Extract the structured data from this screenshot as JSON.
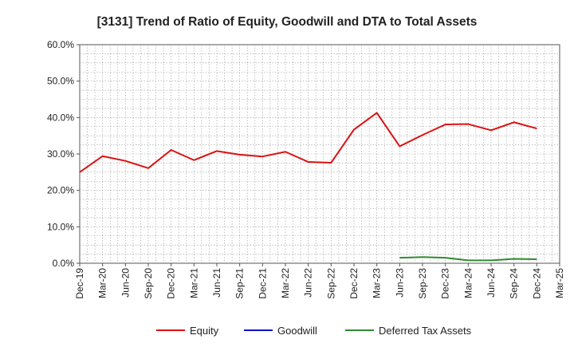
{
  "chart_data": {
    "type": "line",
    "title": "[3131]  Trend of Ratio of Equity, Goodwill and DTA to Total Assets",
    "xlabel": "",
    "ylabel": "",
    "categories": [
      "Dec-19",
      "Mar-20",
      "Jun-20",
      "Sep-20",
      "Dec-20",
      "Mar-21",
      "Jun-21",
      "Sep-21",
      "Dec-21",
      "Mar-22",
      "Jun-22",
      "Sep-22",
      "Dec-22",
      "Mar-23",
      "Jun-23",
      "Sep-23",
      "Dec-23",
      "Mar-24",
      "Jun-24",
      "Sep-24",
      "Dec-24",
      "Mar-25"
    ],
    "ylim": [
      0,
      60
    ],
    "yticks": [
      "0.0%",
      "10.0%",
      "20.0%",
      "30.0%",
      "40.0%",
      "50.0%",
      "60.0%"
    ],
    "ytick_values": [
      0,
      10,
      20,
      30,
      40,
      50,
      60
    ],
    "grid": "dotted",
    "legend_position": "bottom",
    "series": [
      {
        "name": "Equity",
        "color": "#dd1111",
        "values": [
          25.0,
          29.4,
          28.1,
          26.1,
          31.1,
          28.3,
          30.8,
          29.8,
          29.3,
          30.6,
          27.8,
          27.6,
          36.7,
          41.3,
          32.1,
          35.2,
          38.1,
          38.2,
          36.5,
          38.7,
          37.0,
          null
        ]
      },
      {
        "name": "Goodwill",
        "color": "#1111cc",
        "values": [
          null,
          null,
          null,
          null,
          null,
          null,
          null,
          null,
          null,
          null,
          null,
          null,
          null,
          null,
          null,
          null,
          null,
          null,
          null,
          null,
          null,
          null
        ]
      },
      {
        "name": "Deferred Tax Assets",
        "color": "#2e8b2e",
        "values": [
          null,
          null,
          null,
          null,
          null,
          null,
          null,
          null,
          null,
          null,
          null,
          null,
          null,
          null,
          1.5,
          1.7,
          1.5,
          0.8,
          0.8,
          1.2,
          1.1,
          null
        ]
      }
    ]
  }
}
